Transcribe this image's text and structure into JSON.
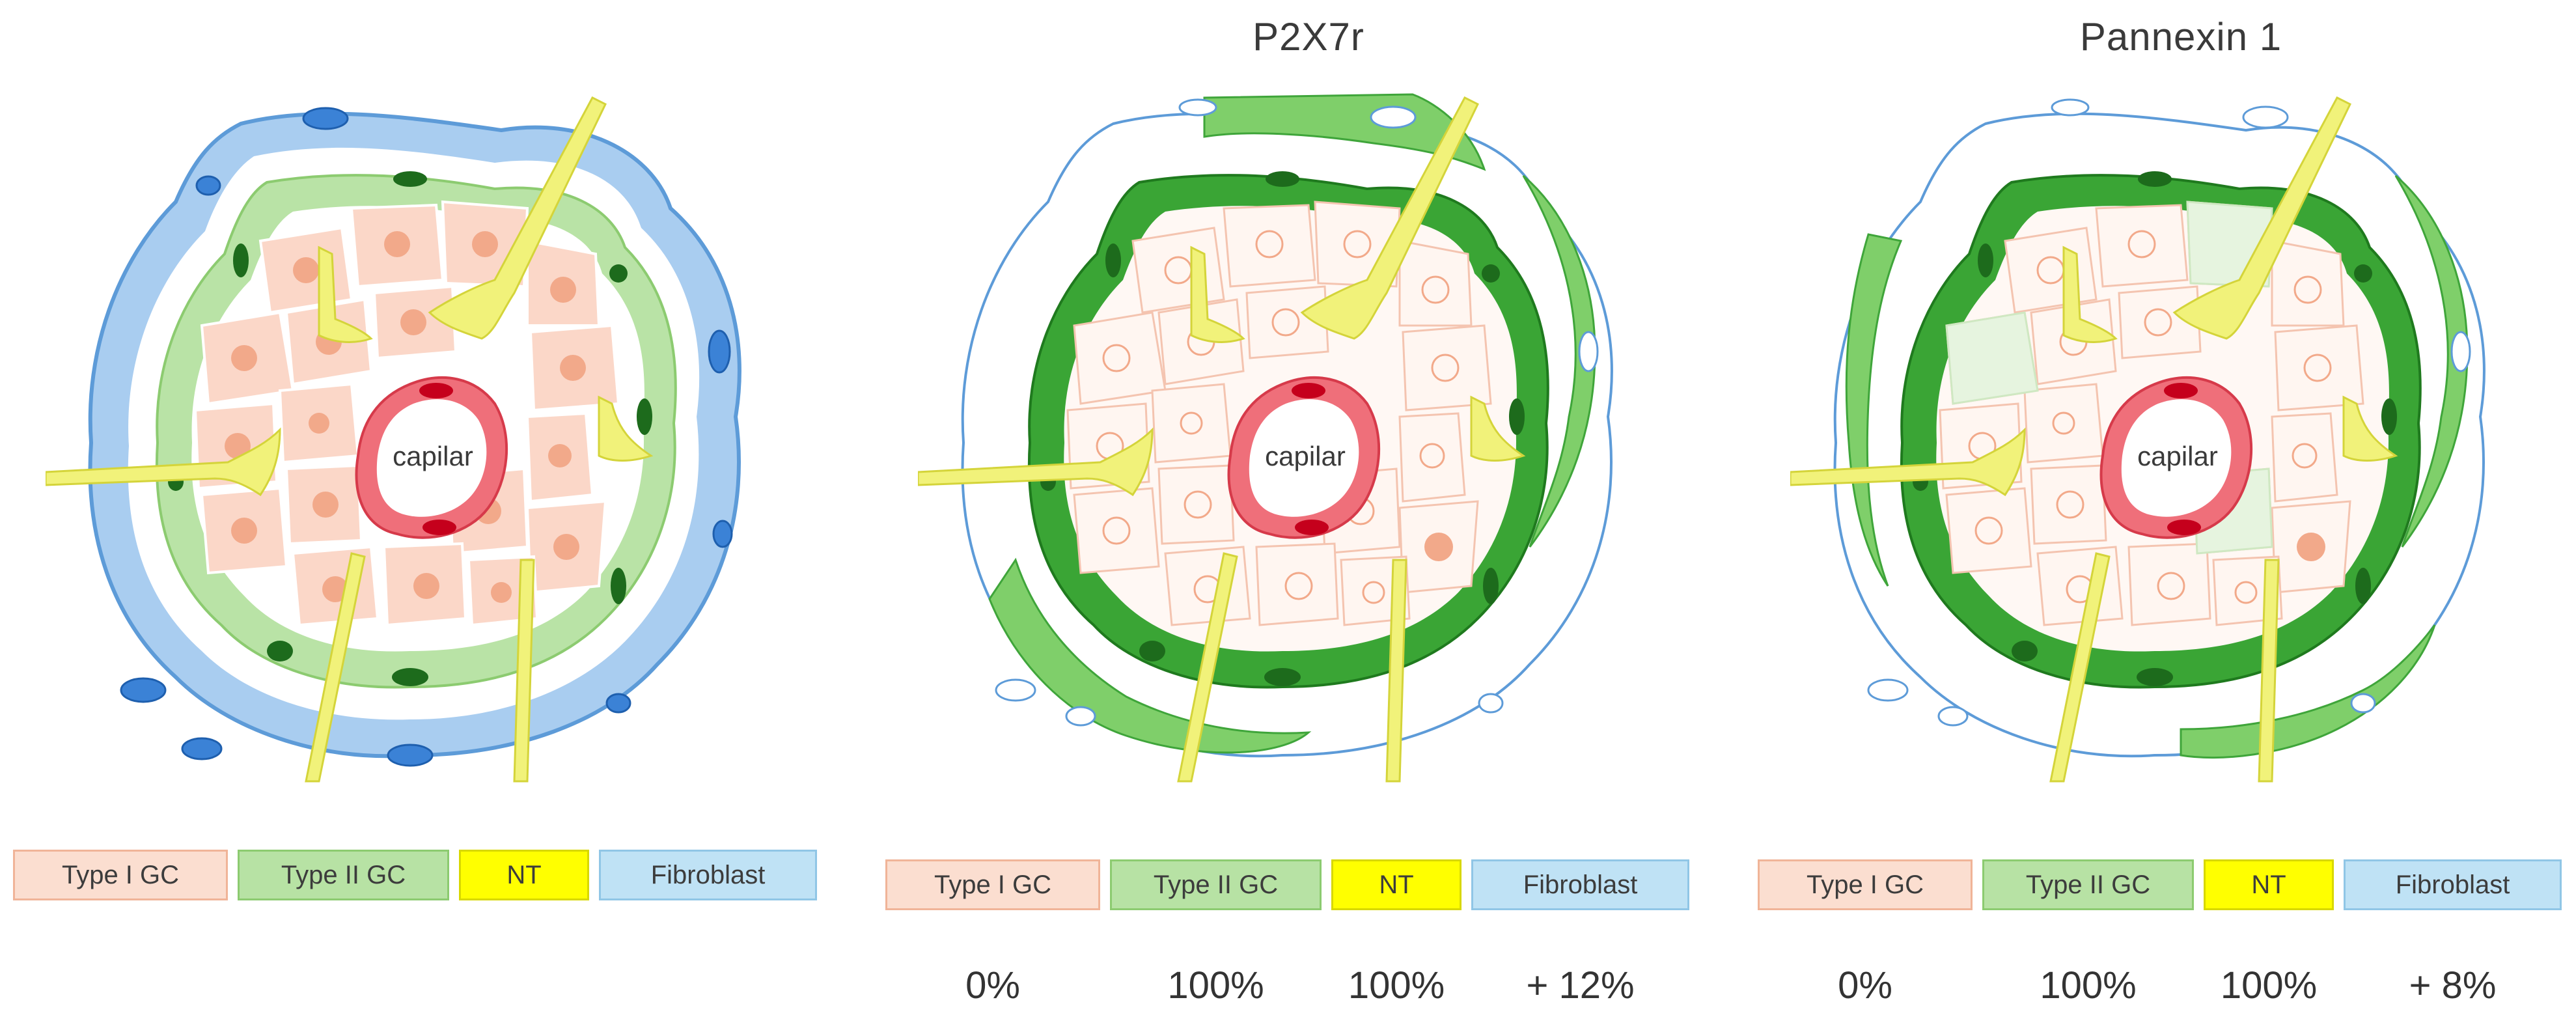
{
  "panels": [
    {
      "title": "",
      "capillary_label": "capilar",
      "legend": [
        "Type I GC",
        "Type II GC",
        "NT",
        "Fibroblast"
      ],
      "percentages": [],
      "staining": "none"
    },
    {
      "title": "P2X7r",
      "capillary_label": "capilar",
      "legend": [
        "Type I GC",
        "Type II GC",
        "NT",
        "Fibroblast"
      ],
      "percentages": [
        "0%",
        "100%",
        "100%",
        "+ 12%"
      ],
      "staining": "type-II-dark-green"
    },
    {
      "title": "Pannexin 1",
      "capillary_label": "capilar",
      "legend": [
        "Type I GC",
        "Type II GC",
        "NT",
        "Fibroblast"
      ],
      "percentages": [
        "0%",
        "100%",
        "100%",
        "+ 8%"
      ],
      "staining": "type-II-dark-green"
    }
  ],
  "colors": {
    "type1_fill": "#fbd7c8",
    "type1_nucleus": "#f2a98a",
    "type2_fill": "#b9e3a6",
    "type2_dark": "#2e9e2a",
    "type2_nucleus": "#1d6b1c",
    "nerve": "#f1f27a",
    "fibroblast": "#a9cdf0",
    "fibroblast_nucleus": "#3b82d6",
    "capillary": "#ef6f7a",
    "capillary_nucleus": "#c5001c"
  }
}
